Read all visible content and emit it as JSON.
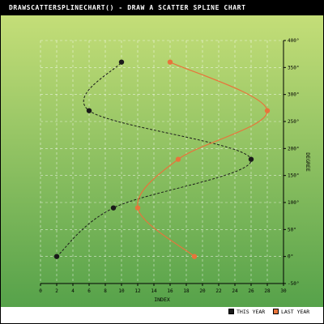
{
  "title": "DRAWSCATTERSPLINECHART() - DRAW A SCATTER SPLINE CHART",
  "colors": {
    "plot_top": "#c4de78",
    "plot_bottom": "#56a24a",
    "grid": "#ffffff",
    "series_this_year": "#1a1a1a",
    "series_last_year": "#e8743b"
  },
  "chart_data": {
    "type": "scatter",
    "subtype": "spline",
    "title": "DRAWSCATTERSPLINECHART() - DRAW A SCATTER SPLINE CHART",
    "xlabel": "INDEX",
    "ylabel": "DEGREE",
    "xlim": [
      0,
      30
    ],
    "ylim": [
      -50,
      400
    ],
    "x_ticks": [
      "0",
      "2",
      "4",
      "6",
      "8",
      "10",
      "12",
      "14",
      "16",
      "18",
      "20",
      "22",
      "24",
      "26",
      "28",
      "30"
    ],
    "y_ticks": [
      "-50°",
      "0°",
      "50°",
      "100°",
      "150°",
      "200°",
      "250°",
      "300°",
      "350°",
      "400°"
    ],
    "grid": true,
    "legend_position": "bottom-right",
    "series": [
      {
        "name": "THIS YEAR",
        "line_style": "dashed",
        "points": [
          [
            2,
            0
          ],
          [
            9,
            90
          ],
          [
            26,
            180
          ],
          [
            6,
            270
          ],
          [
            10,
            360
          ]
        ]
      },
      {
        "name": "LAST YEAR",
        "line_style": "solid",
        "points": [
          [
            19,
            0
          ],
          [
            12,
            90
          ],
          [
            17,
            180
          ],
          [
            28,
            270
          ],
          [
            16,
            360
          ]
        ]
      }
    ]
  }
}
